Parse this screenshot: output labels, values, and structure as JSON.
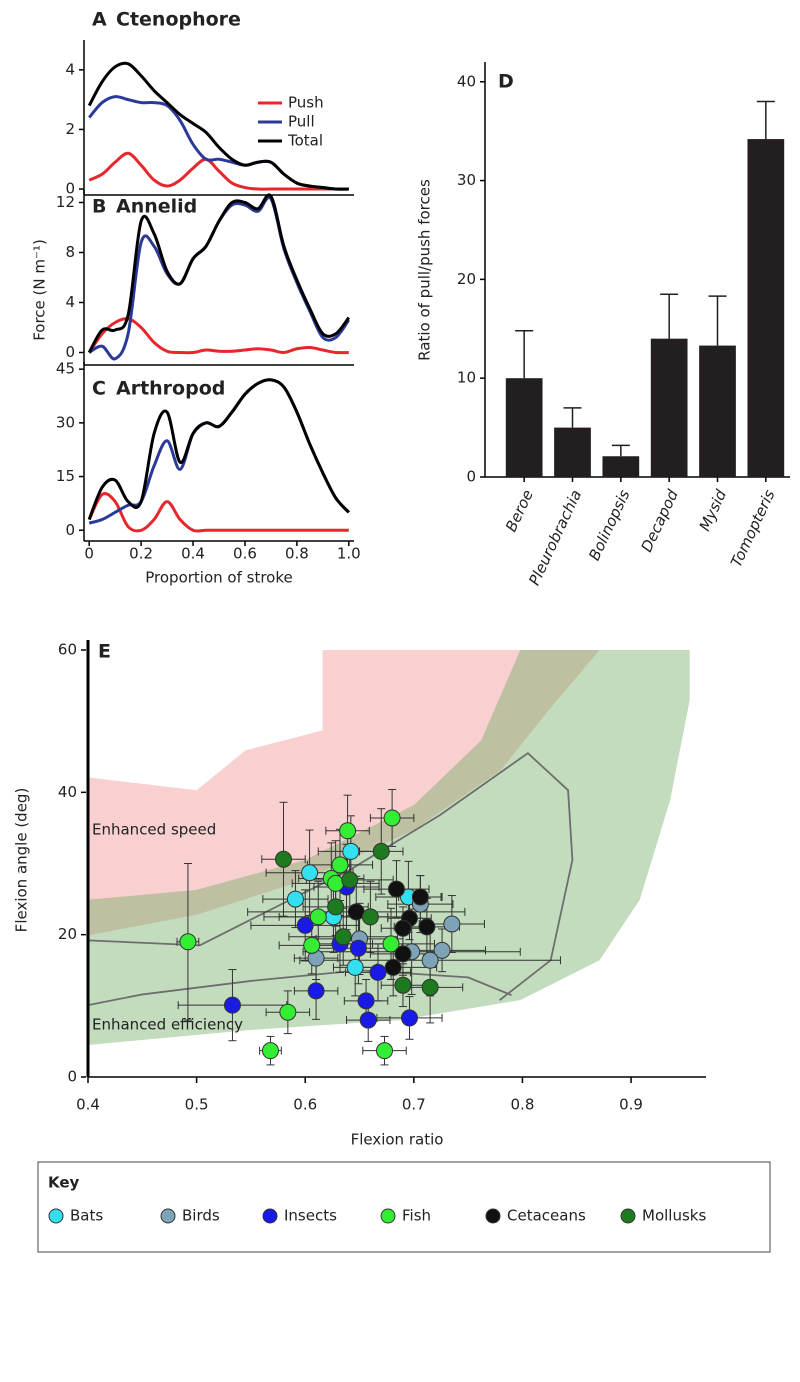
{
  "chart_data": [
    {
      "type": "line",
      "panel": "A",
      "title": "Ctenophore",
      "legend": "upper right",
      "xlim": [
        -0.02,
        1.02
      ],
      "ylim": [
        -0.2,
        5
      ],
      "yticks": [
        0,
        2,
        4
      ],
      "x": [
        0,
        0.05,
        0.1,
        0.15,
        0.2,
        0.25,
        0.3,
        0.35,
        0.4,
        0.45,
        0.5,
        0.55,
        0.6,
        0.65,
        0.7,
        0.75,
        0.8,
        0.85,
        0.9,
        0.95,
        1.0
      ],
      "series": [
        {
          "name": "Push",
          "color": "#e8262b",
          "values": [
            0.3,
            0.5,
            0.9,
            1.2,
            0.8,
            0.3,
            0.1,
            0.3,
            0.7,
            1.0,
            0.6,
            0.2,
            0.05,
            0,
            0,
            0,
            0,
            0,
            0,
            0,
            0
          ]
        },
        {
          "name": "Pull",
          "color": "#2b3a98",
          "values": [
            2.4,
            2.9,
            3.1,
            3.0,
            2.9,
            2.9,
            2.8,
            2.3,
            1.5,
            1.0,
            1.0,
            0.9,
            0.8,
            0.9,
            0.9,
            0.5,
            0.2,
            0.1,
            0.05,
            0,
            0
          ]
        },
        {
          "name": "Total",
          "color": "#000000",
          "values": [
            2.8,
            3.6,
            4.1,
            4.2,
            3.8,
            3.3,
            2.9,
            2.5,
            2.2,
            1.9,
            1.4,
            1.0,
            0.8,
            0.9,
            0.9,
            0.5,
            0.2,
            0.1,
            0.05,
            0,
            0
          ]
        }
      ]
    },
    {
      "type": "line",
      "panel": "B",
      "title": "Annelid",
      "ylabel": "Force (N m⁻¹)",
      "xlim": [
        -0.02,
        1.02
      ],
      "ylim": [
        -1,
        13
      ],
      "yticks": [
        0,
        4,
        8,
        12
      ],
      "x": [
        0,
        0.05,
        0.1,
        0.15,
        0.2,
        0.25,
        0.3,
        0.35,
        0.4,
        0.45,
        0.5,
        0.55,
        0.6,
        0.65,
        0.7,
        0.75,
        0.8,
        0.85,
        0.9,
        0.95,
        1.0
      ],
      "series": [
        {
          "color": "#e8262b",
          "values": [
            0,
            1.5,
            2.4,
            2.7,
            2.0,
            0.8,
            0.1,
            0,
            0,
            0.2,
            0.1,
            0.1,
            0.2,
            0.3,
            0.2,
            0,
            0.3,
            0.4,
            0.2,
            0,
            0
          ]
        },
        {
          "color": "#2b3a98",
          "values": [
            0,
            0.5,
            -0.5,
            1.5,
            8.8,
            8.5,
            6.3,
            5.5,
            7.5,
            8.5,
            10.5,
            11.8,
            11.8,
            11.3,
            12.3,
            8.3,
            5.6,
            3.3,
            1.2,
            1.2,
            2.6
          ]
        },
        {
          "color": "#000000",
          "values": [
            0,
            1.8,
            1.8,
            3.0,
            10.5,
            9.5,
            6.5,
            5.5,
            7.5,
            8.5,
            10.5,
            12.0,
            12.0,
            11.5,
            12.5,
            8.5,
            5.8,
            3.5,
            1.5,
            1.5,
            2.8
          ]
        }
      ]
    },
    {
      "type": "line",
      "panel": "C",
      "title": "Arthropod",
      "xlabel": "Proportion of stroke",
      "xlim": [
        -0.02,
        1.02
      ],
      "ylim": [
        -3,
        47
      ],
      "yticks": [
        0,
        15,
        30,
        45
      ],
      "xticks": [
        0,
        0.2,
        0.4,
        0.6,
        0.8,
        {
          "value": 1,
          "label": "1.0"
        }
      ],
      "x": [
        0,
        0.05,
        0.1,
        0.15,
        0.2,
        0.25,
        0.3,
        0.35,
        0.4,
        0.45,
        0.5,
        0.55,
        0.6,
        0.65,
        0.7,
        0.75,
        0.8,
        0.85,
        0.9,
        0.95,
        1.0
      ],
      "series": [
        {
          "color": "#e8262b",
          "values": [
            3,
            10,
            8,
            1,
            0,
            3,
            8,
            3,
            0,
            0,
            0,
            0,
            0,
            0,
            0,
            0,
            0,
            0,
            0,
            0,
            0
          ]
        },
        {
          "color": "#2b3a98",
          "values": [
            2,
            3,
            5,
            7,
            8,
            18,
            25,
            17,
            27,
            30,
            29,
            33,
            38,
            41,
            42,
            40,
            33,
            24,
            16,
            9,
            5
          ]
        },
        {
          "color": "#000000",
          "values": [
            3,
            12,
            14,
            8,
            8,
            27,
            33,
            19,
            27,
            30,
            29,
            33,
            38,
            41,
            42,
            40,
            33,
            24,
            16,
            9,
            5
          ]
        }
      ]
    },
    {
      "type": "bar",
      "panel": "D",
      "ylabel": "Ratio of pull/push forces",
      "color": "#231f20",
      "ylim": [
        0,
        42
      ],
      "yticks": [
        0,
        10,
        20,
        30,
        40
      ],
      "categories": [
        "Beroe",
        "Pleurobrachia",
        "Bolinopsis",
        "Decapod",
        "Mysid",
        "Tomopteris"
      ],
      "values": [
        10,
        5,
        2.1,
        14,
        13.3,
        34.2
      ],
      "errors": [
        4.8,
        2,
        1.1,
        4.5,
        5,
        3.8
      ]
    },
    {
      "type": "scatter",
      "panel": "E",
      "xlabel": "Flexion ratio",
      "ylabel": "Flexion angle (deg)",
      "legend_title": "Key",
      "xlim": [
        0.4,
        0.969
      ],
      "ylim": [
        0,
        60
      ],
      "xticks": [
        0.4,
        0.5,
        0.6,
        0.7,
        0.8,
        0.9
      ],
      "yticks": [
        0,
        20,
        40,
        60
      ],
      "regions": [
        {
          "name": "Enhanced speed",
          "color": "#f08a8a",
          "x": [
            0.4,
            0.5,
            0.545,
            0.616,
            0.616,
            0.871,
            0.824,
            0.78,
            0.7,
            0.6,
            0.5,
            0.4
          ],
          "y": [
            42.1,
            40.3,
            45.9,
            48.7,
            60,
            60,
            51.5,
            43.1,
            34.7,
            27.7,
            22.8,
            19.9
          ]
        },
        {
          "name": "Enhanced efficiency",
          "color": "#6aa85a",
          "x": [
            0.4,
            0.5,
            0.6,
            0.7,
            0.762,
            0.798,
            0.954,
            0.954,
            0.936,
            0.908,
            0.871,
            0.798,
            0.687,
            0.549,
            0.4
          ],
          "y": [
            24.9,
            26.3,
            30.5,
            38.2,
            47.3,
            60,
            60,
            53,
            38.9,
            24.9,
            16.4,
            10.8,
            8.0,
            6.6,
            4.5
          ]
        }
      ],
      "curves": [
        {
          "color": "#6e6e6e",
          "x": [
            0.4,
            0.503,
            0.577,
            0.641,
            0.724,
            0.805,
            0.842,
            0.846,
            0.826,
            0.779
          ],
          "y": [
            19.2,
            18.5,
            24.2,
            29.1,
            36.8,
            45.5,
            40.3,
            30.5,
            16.4,
            10.8
          ]
        },
        {
          "color": "#6e6e6e",
          "x": [
            0.4,
            0.45,
            0.55,
            0.65,
            0.75,
            0.79
          ],
          "y": [
            10.1,
            11.6,
            13.5,
            15.0,
            14.0,
            11.5
          ]
        }
      ],
      "series": [
        {
          "name": "Bats",
          "color": "#33e0f0",
          "x": [
            0.642,
            0.604,
            0.591,
            0.626,
            0.646,
            0.695
          ],
          "values": [
            31.7,
            28.7,
            25.0,
            22.5,
            15.4,
            25.3
          ],
          "xerr": [
            0.03,
            0.04,
            0.03,
            0.05,
            0.02,
            0.03
          ],
          "yerr": [
            5,
            6,
            4,
            5,
            4,
            5
          ]
        },
        {
          "name": "Birds",
          "color": "#7ea3b8",
          "x": [
            0.706,
            0.61,
            0.65,
            0.698,
            0.726,
            0.735,
            0.715
          ],
          "values": [
            24.3,
            16.7,
            19.4,
            17.6,
            17.8,
            21.5,
            16.4
          ],
          "xerr": [
            0.03,
            0.02,
            0.04,
            0.1,
            0.04,
            0.03,
            0.12
          ],
          "yerr": [
            4,
            3,
            5,
            6,
            3,
            4,
            5
          ]
        },
        {
          "name": "Insects",
          "color": "#1a1ae6",
          "x": [
            0.638,
            0.6,
            0.632,
            0.649,
            0.61,
            0.667,
            0.656,
            0.658,
            0.696,
            0.533
          ],
          "values": [
            26.7,
            21.3,
            18.7,
            18.1,
            12.1,
            14.7,
            10.7,
            8.0,
            8.3,
            10.1
          ],
          "xerr": [
            0.03,
            0.05,
            0.03,
            0.04,
            0.02,
            0.03,
            0.02,
            0.02,
            0.03,
            0.05
          ],
          "yerr": [
            6,
            5,
            4,
            5,
            4,
            4,
            3,
            3,
            3,
            5
          ]
        },
        {
          "name": "Fish",
          "color": "#33ee33",
          "x": [
            0.639,
            0.68,
            0.624,
            0.628,
            0.612,
            0.606,
            0.492,
            0.679,
            0.584,
            0.568,
            0.673,
            0.632
          ],
          "values": [
            34.6,
            36.4,
            27.9,
            27.2,
            22.5,
            18.5,
            19.0,
            18.7,
            9.1,
            3.7,
            3.7,
            29.8
          ],
          "xerr": [
            0.02,
            0.02,
            0.03,
            0.04,
            0.05,
            0.03,
            0.01,
            0.04,
            0.02,
            0.01,
            0.02,
            0.03
          ],
          "yerr": [
            5,
            4,
            5,
            6,
            5,
            4,
            11,
            5,
            3,
            2,
            2,
            5
          ]
        },
        {
          "name": "Cetaceans",
          "color": "#111111",
          "x": [
            0.684,
            0.706,
            0.647,
            0.696,
            0.712,
            0.69,
            0.681,
            0.69
          ],
          "values": [
            26.4,
            25.3,
            23.2,
            22.3,
            21.1,
            20.9,
            15.4,
            17.3
          ],
          "xerr": [
            0.03,
            0.02,
            0.1,
            0.02,
            0.03,
            0.02,
            0.04,
            0.03
          ],
          "yerr": [
            4,
            3,
            5,
            3,
            4,
            3,
            4,
            3
          ]
        },
        {
          "name": "Mollusks",
          "color": "#1e7a1e",
          "x": [
            0.58,
            0.67,
            0.641,
            0.628,
            0.635,
            0.66,
            0.69,
            0.715
          ],
          "values": [
            30.6,
            31.7,
            27.7,
            23.9,
            19.7,
            22.5,
            12.9,
            12.6
          ],
          "xerr": [
            0.02,
            0.02,
            0.04,
            0.03,
            0.05,
            0.03,
            0.02,
            0.03
          ],
          "yerr": [
            8,
            6,
            5,
            4,
            4,
            5,
            3,
            5
          ]
        }
      ]
    }
  ]
}
